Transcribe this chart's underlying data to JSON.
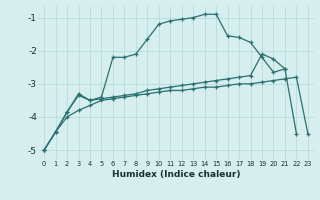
{
  "title": "",
  "xlabel": "Humidex (Indice chaleur)",
  "bg_color": "#d6eeee",
  "grid_color": "#b0d8d8",
  "line_color": "#2a7070",
  "xlim": [
    -0.5,
    23.5
  ],
  "ylim": [
    -5.3,
    -0.65
  ],
  "xticks": [
    0,
    1,
    2,
    3,
    4,
    5,
    6,
    7,
    8,
    9,
    10,
    11,
    12,
    13,
    14,
    15,
    16,
    17,
    18,
    19,
    20,
    21,
    22,
    23
  ],
  "yticks": [
    -5,
    -4,
    -3,
    -2,
    -1
  ],
  "line_curved_x": [
    0,
    1,
    2,
    3,
    4,
    5,
    6,
    7,
    8,
    9,
    10,
    11,
    12,
    13,
    14,
    15,
    16,
    17,
    18,
    19,
    20,
    21
  ],
  "line_curved_y": [
    -5.0,
    -4.45,
    -3.85,
    -3.35,
    -3.5,
    -3.4,
    -2.2,
    -2.2,
    -2.1,
    -1.65,
    -1.2,
    -1.1,
    -1.05,
    -1.0,
    -0.9,
    -0.9,
    -1.55,
    -1.6,
    -1.75,
    -2.2,
    -2.65,
    -2.55
  ],
  "line_flat_x": [
    0,
    1,
    2,
    3,
    4,
    5,
    6,
    7,
    8,
    9,
    10,
    11,
    12,
    13,
    14,
    15,
    16,
    17,
    18,
    19,
    20,
    21,
    22,
    23
  ],
  "line_flat_y": [
    -5.0,
    -4.45,
    -4.0,
    -3.8,
    -3.65,
    -3.5,
    -3.45,
    -3.4,
    -3.35,
    -3.3,
    -3.25,
    -3.2,
    -3.2,
    -3.15,
    -3.1,
    -3.1,
    -3.05,
    -3.0,
    -3.0,
    -2.95,
    -2.9,
    -2.85,
    -2.8,
    -4.5
  ],
  "line_diag_x": [
    0,
    1,
    2,
    3,
    4,
    5,
    6,
    7,
    8,
    9,
    10,
    11,
    12,
    13,
    14,
    15,
    16,
    17,
    18,
    19,
    20,
    21,
    22
  ],
  "line_diag_y": [
    -5.0,
    -4.45,
    -3.85,
    -3.3,
    -3.5,
    -3.45,
    -3.4,
    -3.35,
    -3.3,
    -3.2,
    -3.15,
    -3.1,
    -3.05,
    -3.0,
    -2.95,
    -2.9,
    -2.85,
    -2.8,
    -2.75,
    -2.1,
    -2.25,
    -2.55,
    -4.5
  ]
}
